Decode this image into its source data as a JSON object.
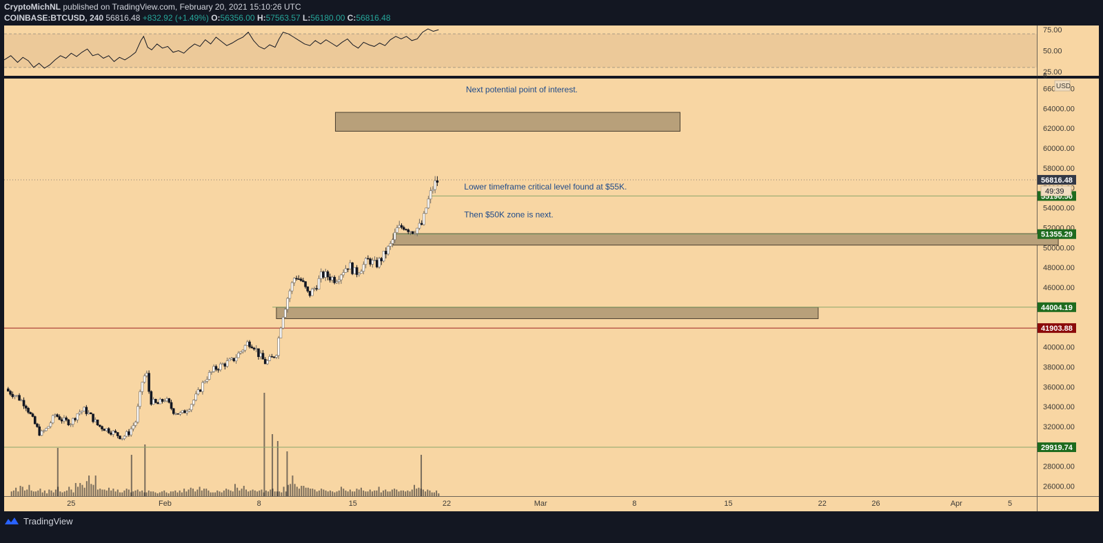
{
  "header": {
    "author": "CryptoMichNL",
    "published": "published on TradingView.com, February 20, 2021 15:10:26 UTC",
    "symbol": "COINBASE:BTCUSD, 240",
    "price": "56816.48",
    "change": "+832.92 (+1.49%)",
    "open_label": "O:",
    "open": "56356.00",
    "high_label": "H:",
    "high": "57563.57",
    "low_label": "L:",
    "low": "56180.00",
    "close_label": "C:",
    "close": "56816.48"
  },
  "colors": {
    "background": "#f8d6a3",
    "frame": "#131722",
    "candle": "#131722",
    "box_fill": "#b8a07a",
    "support_line": "#8aa56a",
    "resistance_line": "#9c1f1f",
    "label_green": "#1e6b1e",
    "label_red": "#8b0a0a",
    "label_dark": "#323846",
    "annotation_text": "#1e4a8a"
  },
  "chart_data": {
    "type": "candlestick",
    "title": "COINBASE:BTCUSD, 240",
    "currency": "USD",
    "ylim": [
      25000,
      67000
    ],
    "y_ticks": [
      26000,
      28000,
      30000,
      32000,
      34000,
      36000,
      38000,
      40000,
      42000,
      44000,
      46000,
      48000,
      50000,
      52000,
      54000,
      56000,
      58000,
      60000,
      62000,
      64000,
      66000
    ],
    "y_tick_labels": [
      "26000.00",
      "28000.00",
      "30000.00",
      "32000.00",
      "34000.00",
      "36000.00",
      "38000.00",
      "40000.00",
      "42000.00",
      "44000.00",
      "46000.00",
      "48000.00",
      "50000.00",
      "52000.00",
      "54000.00",
      "56000.00",
      "58000.00",
      "60000.00",
      "62000.00",
      "64000.00",
      "66000.00"
    ],
    "x_ticks": [
      {
        "label": "25",
        "day": 4
      },
      {
        "label": "Feb",
        "day": 11
      },
      {
        "label": "8",
        "day": 18
      },
      {
        "label": "15",
        "day": 25
      },
      {
        "label": "22",
        "day": 32
      },
      {
        "label": "Mar",
        "day": 39
      },
      {
        "label": "8",
        "day": 46
      },
      {
        "label": "15",
        "day": 53
      },
      {
        "label": "22",
        "day": 60
      },
      {
        "label": "26",
        "day": 64
      },
      {
        "label": "Apr",
        "day": 70
      },
      {
        "label": "5",
        "day": 74
      }
    ],
    "x_range_days": [
      -1,
      76
    ],
    "last_data_day": 31.4,
    "close_path": [
      [
        -1,
        35800
      ],
      [
        0,
        35000
      ],
      [
        0.6,
        34200
      ],
      [
        1.2,
        32500
      ],
      [
        1.7,
        31200
      ],
      [
        2.2,
        31800
      ],
      [
        2.8,
        33200
      ],
      [
        3.4,
        32600
      ],
      [
        4,
        32400
      ],
      [
        4.5,
        33400
      ],
      [
        5,
        33700
      ],
      [
        5.5,
        33000
      ],
      [
        6,
        32100
      ],
      [
        6.5,
        31800
      ],
      [
        7,
        31500
      ],
      [
        7.4,
        31200
      ],
      [
        7.8,
        30900
      ],
      [
        8.3,
        31400
      ],
      [
        8.8,
        32500
      ],
      [
        9.3,
        36500
      ],
      [
        9.6,
        37500
      ],
      [
        9.9,
        34600
      ],
      [
        10.4,
        34200
      ],
      [
        11,
        34800
      ],
      [
        11.6,
        33600
      ],
      [
        12.2,
        33200
      ],
      [
        12.8,
        34000
      ],
      [
        13.4,
        35200
      ],
      [
        14,
        36800
      ],
      [
        14.7,
        37800
      ],
      [
        15.4,
        38300
      ],
      [
        16,
        38600
      ],
      [
        16.6,
        39500
      ],
      [
        17.2,
        40500
      ],
      [
        17.6,
        40200
      ],
      [
        18,
        39200
      ],
      [
        18.5,
        38400
      ],
      [
        19,
        38900
      ],
      [
        19.3,
        39500
      ],
      [
        19.7,
        42800
      ],
      [
        20.2,
        45300
      ],
      [
        20.7,
        47200
      ],
      [
        21.2,
        46600
      ],
      [
        21.7,
        45200
      ],
      [
        22.2,
        46000
      ],
      [
        22.7,
        47300
      ],
      [
        23.2,
        47100
      ],
      [
        23.7,
        46800
      ],
      [
        24.2,
        47600
      ],
      [
        24.7,
        48300
      ],
      [
        25.2,
        47400
      ],
      [
        25.7,
        48100
      ],
      [
        26.2,
        48800
      ],
      [
        26.7,
        48200
      ],
      [
        27.2,
        49000
      ],
      [
        27.8,
        50200
      ],
      [
        28.3,
        51800
      ],
      [
        28.8,
        52200
      ],
      [
        29.4,
        51700
      ],
      [
        29.9,
        52000
      ],
      [
        30.2,
        52400
      ],
      [
        30.5,
        54200
      ],
      [
        30.9,
        55800
      ],
      [
        31.1,
        56400
      ],
      [
        31.4,
        56816
      ]
    ],
    "volume": {
      "ylim": [
        0,
        3000
      ],
      "values": [
        5,
        6,
        9,
        5,
        11,
        10,
        6,
        7,
        12,
        6,
        5,
        5,
        6,
        8,
        4,
        6,
        3,
        7,
        6,
        4,
        7,
        10,
        5,
        4,
        5,
        6,
        10,
        7,
        4,
        14,
        10,
        14,
        12,
        9,
        16,
        22,
        13,
        12,
        22,
        7,
        8,
        7,
        7,
        6,
        9,
        6,
        8,
        5,
        7,
        4,
        4,
        6,
        8,
        7,
        4,
        5,
        6,
        7,
        5,
        6,
        4,
        4,
        6,
        5,
        5,
        4,
        3,
        4,
        5,
        6,
        4,
        3,
        5,
        5,
        6,
        4,
        6,
        4,
        8,
        5,
        7,
        9,
        8,
        5,
        7,
        10,
        6,
        8,
        8,
        6,
        4,
        4,
        4,
        6,
        5,
        4,
        6,
        8,
        7,
        6,
        5,
        13,
        9,
        6,
        8,
        11,
        7,
        5,
        6,
        7,
        6,
        5,
        6,
        7,
        4,
        6,
        5,
        7,
        8,
        5,
        5,
        5,
        4,
        10,
        5,
        12,
        13,
        22,
        13,
        10,
        8,
        11,
        11,
        9,
        9,
        8,
        8,
        7,
        5,
        6,
        8,
        7,
        6,
        5,
        6,
        5,
        4,
        5,
        6,
        10,
        8,
        6,
        5,
        7,
        5,
        5,
        8,
        7,
        9,
        6,
        5,
        5,
        7,
        5,
        6,
        6,
        10,
        4,
        6,
        7,
        5,
        5,
        7,
        8,
        7,
        5,
        6,
        6,
        5,
        6,
        5,
        7,
        12,
        8,
        9,
        8,
        7,
        5,
        7,
        6,
        4,
        4,
        6,
        3
      ],
      "spike_days": [
        3.0,
        8.5,
        9.5,
        18.4,
        19.0,
        19.4,
        20.1,
        30.1
      ]
    },
    "rsi": {
      "ylim": [
        20,
        80
      ],
      "levels": [
        70,
        30
      ],
      "tick_labels": [
        "75.00",
        "50.00",
        "25.00"
      ],
      "tick_values": [
        75,
        50,
        25
      ],
      "path": [
        [
          -1,
          39
        ],
        [
          -0.5,
          44
        ],
        [
          0,
          36
        ],
        [
          0.4,
          42
        ],
        [
          0.8,
          38
        ],
        [
          1.2,
          30
        ],
        [
          1.6,
          35
        ],
        [
          2,
          29
        ],
        [
          2.4,
          33
        ],
        [
          2.8,
          39
        ],
        [
          3.2,
          44
        ],
        [
          3.6,
          41
        ],
        [
          4,
          47
        ],
        [
          4.4,
          43
        ],
        [
          4.8,
          48
        ],
        [
          5.2,
          52
        ],
        [
          5.6,
          44
        ],
        [
          6,
          46
        ],
        [
          6.4,
          41
        ],
        [
          6.8,
          44
        ],
        [
          7.2,
          37
        ],
        [
          7.6,
          42
        ],
        [
          8,
          39
        ],
        [
          8.4,
          43
        ],
        [
          8.8,
          48
        ],
        [
          9.2,
          62
        ],
        [
          9.4,
          67
        ],
        [
          9.7,
          54
        ],
        [
          10,
          51
        ],
        [
          10.4,
          58
        ],
        [
          10.8,
          53
        ],
        [
          11.2,
          55
        ],
        [
          11.6,
          48
        ],
        [
          12,
          50
        ],
        [
          12.4,
          47
        ],
        [
          12.8,
          53
        ],
        [
          13.2,
          58
        ],
        [
          13.6,
          55
        ],
        [
          14,
          63
        ],
        [
          14.4,
          58
        ],
        [
          14.8,
          66
        ],
        [
          15.2,
          61
        ],
        [
          15.6,
          56
        ],
        [
          16,
          59
        ],
        [
          16.4,
          63
        ],
        [
          16.8,
          66
        ],
        [
          17.2,
          72
        ],
        [
          17.6,
          62
        ],
        [
          18,
          55
        ],
        [
          18.4,
          52
        ],
        [
          18.8,
          57
        ],
        [
          19.2,
          54
        ],
        [
          19.5,
          64
        ],
        [
          19.8,
          72
        ],
        [
          20.2,
          70
        ],
        [
          20.6,
          66
        ],
        [
          21,
          62
        ],
        [
          21.4,
          58
        ],
        [
          21.8,
          56
        ],
        [
          22.2,
          62
        ],
        [
          22.6,
          58
        ],
        [
          23,
          63
        ],
        [
          23.4,
          59
        ],
        [
          23.8,
          55
        ],
        [
          24.2,
          60
        ],
        [
          24.6,
          64
        ],
        [
          25,
          57
        ],
        [
          25.4,
          53
        ],
        [
          25.8,
          60
        ],
        [
          26.2,
          57
        ],
        [
          26.6,
          55
        ],
        [
          27,
          59
        ],
        [
          27.4,
          56
        ],
        [
          27.8,
          63
        ],
        [
          28.2,
          67
        ],
        [
          28.6,
          64
        ],
        [
          29,
          67
        ],
        [
          29.4,
          62
        ],
        [
          29.8,
          64
        ],
        [
          30.2,
          72
        ],
        [
          30.6,
          76
        ],
        [
          31,
          73
        ],
        [
          31.4,
          75
        ]
      ]
    },
    "horizontal_levels": [
      {
        "value": 55190.5,
        "label": "55190.50",
        "kind": "support",
        "from_day": 30.8
      },
      {
        "value": 51355.29,
        "label": "51355.29",
        "kind": "support",
        "from_day": 28.0
      },
      {
        "value": 44004.19,
        "label": "44004.19",
        "kind": "support",
        "from_day": 19.0
      },
      {
        "value": 41903.88,
        "label": "41903.88",
        "kind": "resistance",
        "from_day": -1
      },
      {
        "value": 29919.74,
        "label": "29919.74",
        "kind": "support",
        "from_day": -1
      }
    ],
    "boxes": [
      {
        "name": "poi-box",
        "day_from": 23.7,
        "day_to": 49.4,
        "top": 63600,
        "bottom": 61700
      },
      {
        "name": "50k-zone-box",
        "day_from": 28.0,
        "day_to": 77.6,
        "top": 51400,
        "bottom": 50250
      },
      {
        "name": "lower-zone-box",
        "day_from": 19.3,
        "day_to": 59.7,
        "top": 44000,
        "bottom": 42850
      }
    ],
    "price_labels": [
      {
        "text": "56816.48",
        "kind": "last"
      },
      {
        "text": "49:39",
        "kind": "countdown"
      }
    ],
    "annotations": [
      {
        "text": "Next potential point of interest.",
        "day": 37.6,
        "value": 65600
      },
      {
        "text": "Lower timeframe critical level found at $55K.",
        "day": 33.3,
        "value": 55850
      },
      {
        "text": "Then $50K zone is next.",
        "day": 33.3,
        "value": 53050
      }
    ],
    "axis_extra": {
      "partial_top": "6",
      "currency": "USD"
    }
  },
  "footer": {
    "brand": "TradingView"
  }
}
